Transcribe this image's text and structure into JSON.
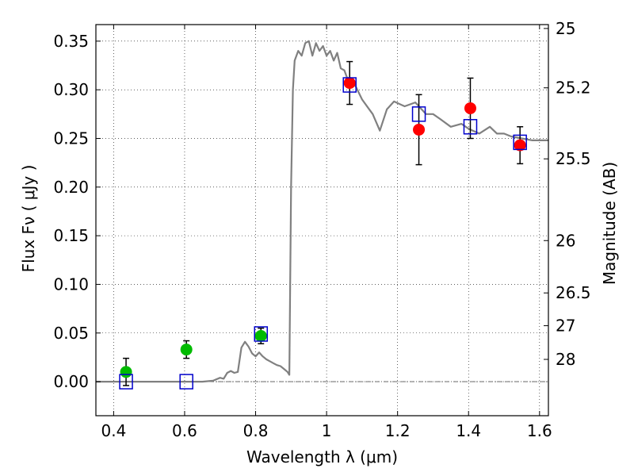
{
  "chart_data": {
    "type": "scatter",
    "xlabel": "Wavelength  λ (μm)",
    "ylabel": "Flux  Fν  ( μJy )",
    "ylabel_right": "Magnitude (AB)",
    "xlim": [
      0.35,
      1.625
    ],
    "ylim": [
      -0.035,
      0.367
    ],
    "grid": true,
    "x_ticks": [
      0.4,
      0.6,
      0.8,
      1.0,
      1.2,
      1.4,
      1.6
    ],
    "x_tick_labels": [
      "0.4",
      "0.6",
      "0.8",
      "1",
      "1.2",
      "1.4",
      "1.6"
    ],
    "y_ticks": [
      0.0,
      0.05,
      0.1,
      0.15,
      0.2,
      0.25,
      0.3,
      0.35
    ],
    "y_tick_labels": [
      "0.00",
      "0.05",
      "0.10",
      "0.15",
      "0.20",
      "0.25",
      "0.30",
      "0.35"
    ],
    "right_ticks": [
      {
        "label": "25",
        "flux": 0.363
      },
      {
        "label": "25.2",
        "flux": 0.302
      },
      {
        "label": "25.5",
        "flux": 0.229
      },
      {
        "label": "26",
        "flux": 0.145
      },
      {
        "label": "26.5",
        "flux": 0.0912
      },
      {
        "label": "27",
        "flux": 0.0575
      },
      {
        "label": "28",
        "flux": 0.0229
      }
    ],
    "colors": {
      "model": "#808080",
      "green": "#00bb00",
      "red": "#ff0000",
      "square": "#0000cc",
      "errorbar": "#000000",
      "zero_line": "#555555"
    },
    "series": [
      {
        "kind": "line",
        "x": [
          0.35,
          0.55,
          0.65,
          0.68,
          0.7,
          0.71,
          0.72,
          0.73,
          0.74,
          0.75,
          0.76,
          0.77,
          0.78,
          0.79,
          0.8,
          0.81,
          0.82,
          0.83,
          0.84,
          0.85,
          0.86,
          0.87,
          0.88,
          0.89,
          0.895,
          0.9,
          0.905,
          0.91,
          0.92,
          0.93,
          0.94,
          0.95,
          0.96,
          0.97,
          0.98,
          0.99,
          1.0,
          1.01,
          1.02,
          1.03,
          1.04,
          1.05,
          1.06,
          1.08,
          1.1,
          1.12,
          1.13,
          1.15,
          1.17,
          1.19,
          1.22,
          1.25,
          1.28,
          1.3,
          1.32,
          1.35,
          1.38,
          1.4,
          1.43,
          1.46,
          1.48,
          1.5,
          1.52,
          1.55,
          1.58,
          1.625
        ],
        "y": [
          0.0,
          0.0,
          0.0,
          0.001,
          0.004,
          0.003,
          0.009,
          0.011,
          0.009,
          0.01,
          0.035,
          0.041,
          0.036,
          0.029,
          0.026,
          0.03,
          0.026,
          0.023,
          0.021,
          0.019,
          0.017,
          0.016,
          0.013,
          0.01,
          0.007,
          0.2,
          0.3,
          0.33,
          0.34,
          0.335,
          0.348,
          0.35,
          0.335,
          0.348,
          0.34,
          0.345,
          0.335,
          0.34,
          0.33,
          0.338,
          0.322,
          0.32,
          0.31,
          0.305,
          0.29,
          0.28,
          0.275,
          0.258,
          0.28,
          0.288,
          0.283,
          0.287,
          0.275,
          0.275,
          0.27,
          0.262,
          0.265,
          0.26,
          0.255,
          0.262,
          0.255,
          0.255,
          0.252,
          0.25,
          0.248,
          0.248
        ]
      },
      {
        "kind": "points",
        "marker": "circle",
        "color": "green",
        "x": [
          0.435,
          0.605,
          0.815
        ],
        "y": [
          0.01,
          0.033,
          0.047
        ],
        "err": [
          0.014,
          0.009,
          0.008
        ]
      },
      {
        "kind": "points",
        "marker": "circle",
        "color": "red",
        "x": [
          1.065,
          1.26,
          1.405,
          1.545
        ],
        "y": [
          0.307,
          0.259,
          0.281,
          0.243
        ],
        "err": [
          0.022,
          0.036,
          0.031,
          0.019
        ]
      },
      {
        "kind": "points",
        "marker": "square",
        "color": "square",
        "x": [
          0.435,
          0.605,
          0.815,
          1.065,
          1.26,
          1.405,
          1.545
        ],
        "y": [
          0.0,
          0.0,
          0.049,
          0.305,
          0.275,
          0.262,
          0.246
        ],
        "err": [
          0,
          0,
          0,
          0,
          0,
          0,
          0
        ]
      }
    ]
  }
}
